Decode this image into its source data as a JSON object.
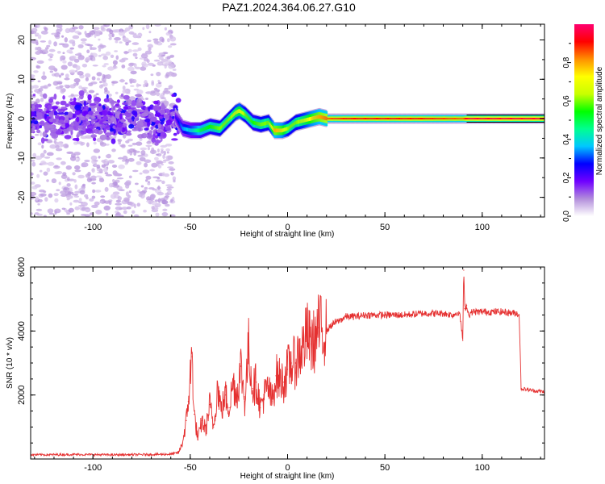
{
  "title": "PAZ1.2024.364.06.27.G10",
  "chart_data": [
    {
      "type": "heatmap",
      "xlabel": "Height of straight line (km)",
      "ylabel": "Frequency (Hz)",
      "xlim": [
        -132,
        132
      ],
      "ylim": [
        -25,
        24
      ],
      "xticks": [
        -100,
        -50,
        0,
        50,
        100
      ],
      "yticks": [
        -20,
        -10,
        0,
        10,
        20
      ],
      "colorbar": {
        "label": "Normalized spectral amplitude",
        "ticks": [
          "0.0",
          "0.2",
          "0.4",
          "0.6",
          "0.8"
        ],
        "range": [
          0,
          1
        ],
        "colors": [
          "#ffffff",
          "#b28ddb",
          "#7000ff",
          "#0000ff",
          "#00c8ff",
          "#00ff90",
          "#00ff00",
          "#c8ff00",
          "#ffff00",
          "#ff9000",
          "#ff0000",
          "#ff0070"
        ]
      },
      "ridge": {
        "height_km": [
          -132,
          -110,
          -90,
          -70,
          -58,
          -54,
          -50,
          -45,
          -40,
          -35,
          -30,
          -27,
          -25,
          -22,
          -18,
          -14,
          -10,
          -7,
          -3,
          0,
          4,
          8,
          12,
          16,
          20,
          30,
          50,
          70,
          90,
          92,
          110,
          132
        ],
        "frequency_hz": [
          0.5,
          -1.0,
          1.0,
          -0.5,
          0.5,
          -2.5,
          -3.0,
          -3.0,
          -2.0,
          -2.5,
          0.0,
          1.5,
          2.0,
          1.0,
          -1.0,
          -1.5,
          -1.0,
          -3.0,
          -3.0,
          -2.5,
          -1.0,
          -0.5,
          0.0,
          0.5,
          0.0,
          0.0,
          0.0,
          0.0,
          0.0,
          0.0,
          0.0,
          0.0
        ],
        "amplitude": [
          0.15,
          0.15,
          0.15,
          0.15,
          0.2,
          0.35,
          0.4,
          0.5,
          0.55,
          0.6,
          0.6,
          0.65,
          0.7,
          0.6,
          0.55,
          0.6,
          0.6,
          0.8,
          0.75,
          0.6,
          0.6,
          0.65,
          0.75,
          0.8,
          0.85,
          0.9,
          0.9,
          0.9,
          0.85,
          0.95,
          0.95,
          0.95
        ]
      }
    },
    {
      "type": "line",
      "xlabel": "Height of straight line (km)",
      "ylabel": "SNR (10 * v/v)",
      "xlim": [
        -132,
        132
      ],
      "ylim": [
        0,
        6000
      ],
      "xticks": [
        -100,
        -50,
        0,
        50,
        100
      ],
      "yticks": [
        2000,
        4000,
        6000
      ],
      "series": [
        {
          "color": "#e53030",
          "x": [
            -132,
            -110,
            -90,
            -70,
            -60,
            -56,
            -54,
            -52,
            -51,
            -50,
            -49,
            -48,
            -46,
            -44,
            -42,
            -40,
            -38,
            -36,
            -34,
            -32,
            -30,
            -28,
            -26,
            -24,
            -22,
            -20,
            -18,
            -16,
            -14,
            -12,
            -10,
            -8,
            -6,
            -4,
            -2,
            0,
            2,
            4,
            6,
            8,
            10,
            12,
            14,
            16,
            18,
            20,
            22,
            24,
            26,
            30,
            35,
            40,
            50,
            60,
            70,
            80,
            85,
            88,
            89,
            90,
            90.5,
            91,
            92,
            93,
            95,
            100,
            110,
            118,
            119,
            120,
            125,
            132
          ],
          "y": [
            130,
            140,
            130,
            140,
            150,
            200,
            500,
            1200,
            1800,
            2600,
            3200,
            1400,
            600,
            1200,
            900,
            1700,
            1000,
            2300,
            1500,
            2000,
            1600,
            2400,
            2000,
            2900,
            1800,
            3500,
            2200,
            2400,
            1600,
            2000,
            2200,
            1800,
            2600,
            2500,
            2400,
            2800,
            3000,
            3000,
            3300,
            3500,
            3900,
            3600,
            3700,
            4100,
            4000,
            4000,
            4150,
            4250,
            4300,
            4450,
            4450,
            4500,
            4500,
            4500,
            4550,
            4550,
            4500,
            4600,
            4300,
            3700,
            5900,
            4700,
            4800,
            4500,
            4600,
            4600,
            4600,
            4550,
            4500,
            2200,
            2150,
            2100
          ]
        }
      ]
    }
  ]
}
